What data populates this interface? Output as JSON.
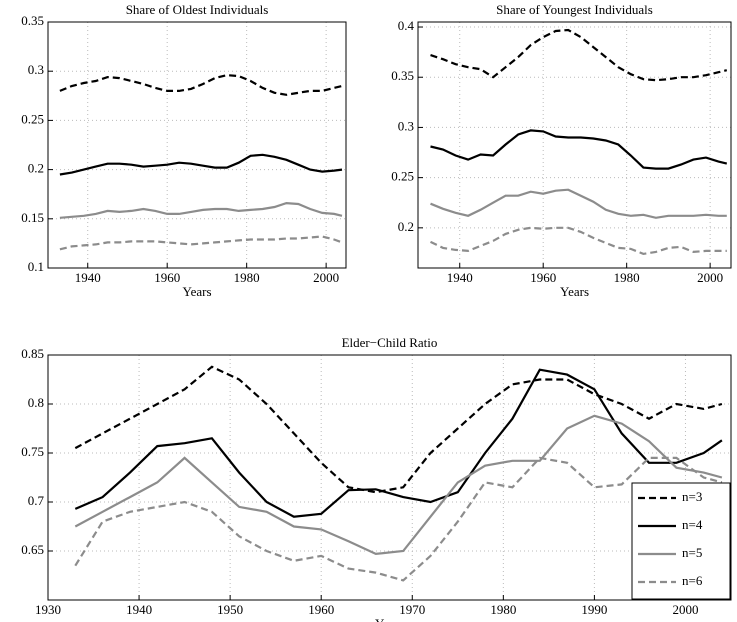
{
  "chart_data": [
    {
      "type": "line",
      "title": "Share of Oldest Individuals",
      "xlabel": "Years",
      "x": [
        1933,
        1936,
        1939,
        1942,
        1945,
        1948,
        1951,
        1954,
        1957,
        1960,
        1963,
        1966,
        1969,
        1972,
        1975,
        1978,
        1981,
        1984,
        1987,
        1990,
        1993,
        1996,
        1999,
        2002,
        2004
      ],
      "xlim": [
        1930,
        2005
      ],
      "xticks": [
        1940,
        1960,
        1980,
        2000
      ],
      "ylim": [
        0.1,
        0.35
      ],
      "yticks": [
        0.1,
        0.15,
        0.2,
        0.25,
        0.3,
        0.35
      ],
      "grid": true,
      "series": [
        {
          "color": "#000000",
          "dashed": true,
          "values": [
            0.28,
            0.285,
            0.288,
            0.29,
            0.294,
            0.293,
            0.29,
            0.287,
            0.283,
            0.28,
            0.28,
            0.282,
            0.287,
            0.293,
            0.296,
            0.295,
            0.29,
            0.283,
            0.278,
            0.276,
            0.278,
            0.28,
            0.28,
            0.283,
            0.285
          ]
        },
        {
          "color": "#000000",
          "dashed": false,
          "values": [
            0.195,
            0.197,
            0.2,
            0.203,
            0.206,
            0.206,
            0.205,
            0.203,
            0.204,
            0.205,
            0.207,
            0.206,
            0.204,
            0.202,
            0.202,
            0.207,
            0.214,
            0.215,
            0.213,
            0.21,
            0.205,
            0.2,
            0.198,
            0.199,
            0.2
          ]
        },
        {
          "color": "#8c8c8c",
          "dashed": false,
          "values": [
            0.151,
            0.152,
            0.153,
            0.155,
            0.158,
            0.157,
            0.158,
            0.16,
            0.158,
            0.155,
            0.155,
            0.157,
            0.159,
            0.16,
            0.16,
            0.158,
            0.159,
            0.16,
            0.162,
            0.166,
            0.165,
            0.16,
            0.156,
            0.155,
            0.153
          ]
        },
        {
          "color": "#8c8c8c",
          "dashed": true,
          "values": [
            0.119,
            0.122,
            0.123,
            0.124,
            0.126,
            0.126,
            0.127,
            0.127,
            0.127,
            0.126,
            0.125,
            0.124,
            0.125,
            0.126,
            0.127,
            0.128,
            0.129,
            0.129,
            0.129,
            0.13,
            0.13,
            0.131,
            0.132,
            0.129,
            0.126
          ]
        }
      ]
    },
    {
      "type": "line",
      "title": "Share of Youngest Individuals",
      "xlabel": "Years",
      "x": [
        1933,
        1936,
        1939,
        1942,
        1945,
        1948,
        1951,
        1954,
        1957,
        1960,
        1963,
        1966,
        1969,
        1972,
        1975,
        1978,
        1981,
        1984,
        1987,
        1990,
        1993,
        1996,
        1999,
        2002,
        2004
      ],
      "xlim": [
        1930,
        2005
      ],
      "xticks": [
        1940,
        1960,
        1980,
        2000
      ],
      "ylim": [
        0.16,
        0.405
      ],
      "yticks": [
        0.2,
        0.25,
        0.3,
        0.35,
        0.4
      ],
      "grid": true,
      "series": [
        {
          "color": "#000000",
          "dashed": true,
          "values": [
            0.372,
            0.368,
            0.363,
            0.36,
            0.358,
            0.35,
            0.36,
            0.37,
            0.382,
            0.39,
            0.396,
            0.397,
            0.39,
            0.38,
            0.37,
            0.36,
            0.353,
            0.348,
            0.347,
            0.348,
            0.35,
            0.35,
            0.352,
            0.355,
            0.357
          ]
        },
        {
          "color": "#000000",
          "dashed": false,
          "values": [
            0.281,
            0.278,
            0.272,
            0.268,
            0.273,
            0.272,
            0.283,
            0.293,
            0.297,
            0.296,
            0.291,
            0.29,
            0.29,
            0.289,
            0.287,
            0.283,
            0.272,
            0.26,
            0.259,
            0.259,
            0.263,
            0.268,
            0.27,
            0.266,
            0.264
          ]
        },
        {
          "color": "#8c8c8c",
          "dashed": false,
          "values": [
            0.224,
            0.219,
            0.215,
            0.212,
            0.218,
            0.225,
            0.232,
            0.232,
            0.236,
            0.234,
            0.237,
            0.238,
            0.232,
            0.226,
            0.218,
            0.214,
            0.212,
            0.213,
            0.21,
            0.212,
            0.212,
            0.212,
            0.213,
            0.212,
            0.212
          ]
        },
        {
          "color": "#8c8c8c",
          "dashed": true,
          "values": [
            0.186,
            0.18,
            0.178,
            0.177,
            0.182,
            0.187,
            0.194,
            0.198,
            0.2,
            0.199,
            0.2,
            0.2,
            0.196,
            0.19,
            0.185,
            0.18,
            0.179,
            0.174,
            0.176,
            0.18,
            0.181,
            0.176,
            0.177,
            0.177,
            0.177
          ]
        }
      ]
    },
    {
      "type": "line",
      "title": "Elder−Child Ratio",
      "xlabel": "Years",
      "x": [
        1933,
        1936,
        1939,
        1942,
        1945,
        1948,
        1951,
        1954,
        1957,
        1960,
        1963,
        1966,
        1969,
        1972,
        1975,
        1978,
        1981,
        1984,
        1987,
        1990,
        1993,
        1996,
        1999,
        2002,
        2004
      ],
      "xlim": [
        1930,
        2005
      ],
      "xticks": [
        1930,
        1940,
        1950,
        1960,
        1970,
        1980,
        1990,
        2000
      ],
      "ylim": [
        0.6,
        0.85
      ],
      "yticks": [
        0.65,
        0.7,
        0.75,
        0.8,
        0.85
      ],
      "grid": true,
      "legend": "lower right",
      "series": [
        {
          "name": "n=3",
          "color": "#000000",
          "dashed": true,
          "values": [
            0.755,
            0.77,
            0.785,
            0.8,
            0.815,
            0.838,
            0.825,
            0.8,
            0.77,
            0.74,
            0.715,
            0.71,
            0.715,
            0.75,
            0.775,
            0.8,
            0.82,
            0.825,
            0.825,
            0.81,
            0.8,
            0.785,
            0.8,
            0.795,
            0.8
          ]
        },
        {
          "name": "n=4",
          "color": "#000000",
          "dashed": false,
          "values": [
            0.693,
            0.705,
            0.73,
            0.757,
            0.76,
            0.765,
            0.73,
            0.7,
            0.685,
            0.688,
            0.712,
            0.713,
            0.705,
            0.7,
            0.71,
            0.75,
            0.785,
            0.835,
            0.83,
            0.815,
            0.77,
            0.74,
            0.74,
            0.75,
            0.763
          ]
        },
        {
          "name": "n=5",
          "color": "#8c8c8c",
          "dashed": false,
          "values": [
            0.675,
            0.69,
            0.705,
            0.72,
            0.745,
            0.72,
            0.695,
            0.69,
            0.675,
            0.672,
            0.66,
            0.647,
            0.65,
            0.685,
            0.72,
            0.737,
            0.742,
            0.742,
            0.775,
            0.788,
            0.78,
            0.762,
            0.735,
            0.73,
            0.725
          ]
        },
        {
          "name": "n=6",
          "color": "#8c8c8c",
          "dashed": true,
          "values": [
            0.635,
            0.68,
            0.69,
            0.695,
            0.7,
            0.69,
            0.665,
            0.65,
            0.64,
            0.645,
            0.632,
            0.628,
            0.62,
            0.645,
            0.68,
            0.72,
            0.715,
            0.745,
            0.74,
            0.715,
            0.718,
            0.745,
            0.745,
            0.725,
            0.72
          ]
        }
      ]
    }
  ]
}
